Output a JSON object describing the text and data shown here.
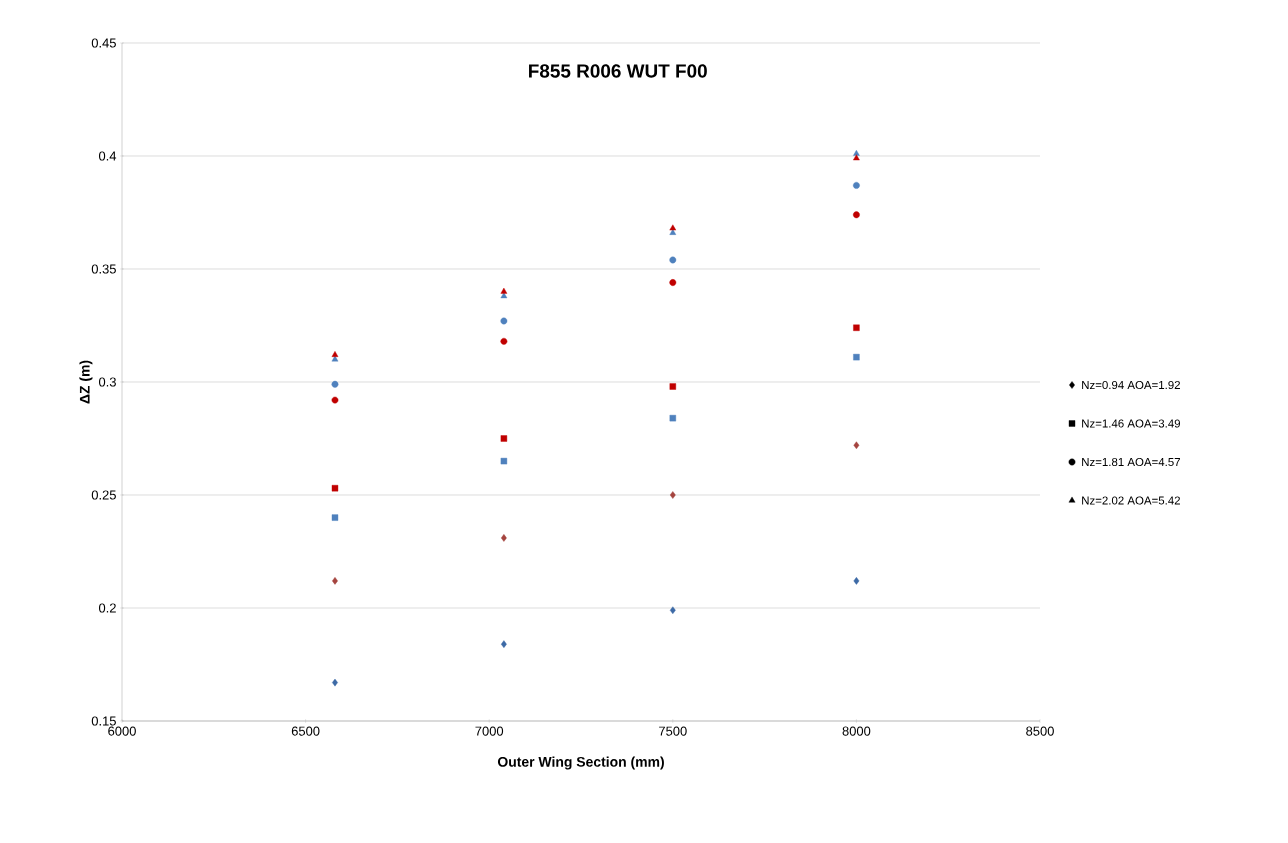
{
  "chart_data": {
    "type": "scatter",
    "title": "F855 R006 WUT F00",
    "xlabel": "Outer Wing Section (mm)",
    "ylabel": "ΔZ (m)",
    "x": [
      6580,
      7040,
      7500,
      8000
    ],
    "xlim": [
      6000,
      8500
    ],
    "xticks": [
      6000,
      6500,
      7000,
      7500,
      8000,
      8500
    ],
    "ylim": [
      0.15,
      0.45
    ],
    "yticks": [
      0.15,
      0.2,
      0.25,
      0.3,
      0.35,
      0.4,
      0.45
    ],
    "grid": "y",
    "legend": "right",
    "series": [
      {
        "color": "#3d6aa6",
        "marker": "diamond",
        "values": [
          0.167,
          0.184,
          0.199,
          0.212
        ]
      },
      {
        "color": "#a5443f",
        "marker": "diamond",
        "values": [
          0.212,
          0.231,
          0.25,
          0.272
        ]
      },
      {
        "color": "#4f81bd",
        "marker": "square",
        "values": [
          0.24,
          0.265,
          0.284,
          0.311
        ]
      },
      {
        "color": "#c00000",
        "marker": "square",
        "values": [
          0.253,
          0.275,
          0.298,
          0.324
        ]
      },
      {
        "color": "#c00000",
        "marker": "circle",
        "values": [
          0.292,
          0.318,
          0.344,
          0.374
        ]
      },
      {
        "color": "#4f81bd",
        "marker": "circle",
        "values": [
          0.299,
          0.327,
          0.354,
          0.387
        ]
      },
      {
        "color": "#4f81bd",
        "marker": "triangle",
        "values": [
          0.31,
          0.338,
          0.366,
          0.401
        ]
      },
      {
        "color": "#c00000",
        "marker": "triangle",
        "values": [
          0.312,
          0.34,
          0.368,
          0.399
        ]
      },
      {
        "name": "Nz=0.94   AOA=1.92",
        "color": "#000000",
        "marker": "diamond",
        "values": [
          null,
          null,
          null,
          null
        ]
      },
      {
        "name": "Nz=1.46   AOA=3.49",
        "color": "#000000",
        "marker": "square",
        "values": [
          null,
          null,
          null,
          null
        ]
      },
      {
        "name": "Nz=1.81   AOA=4.57",
        "color": "#000000",
        "marker": "circle",
        "values": [
          null,
          null,
          null,
          null
        ]
      },
      {
        "name": "Nz=2.02   AOA=5.42",
        "color": "#000000",
        "marker": "triangle",
        "values": [
          null,
          null,
          null,
          null
        ]
      }
    ]
  }
}
